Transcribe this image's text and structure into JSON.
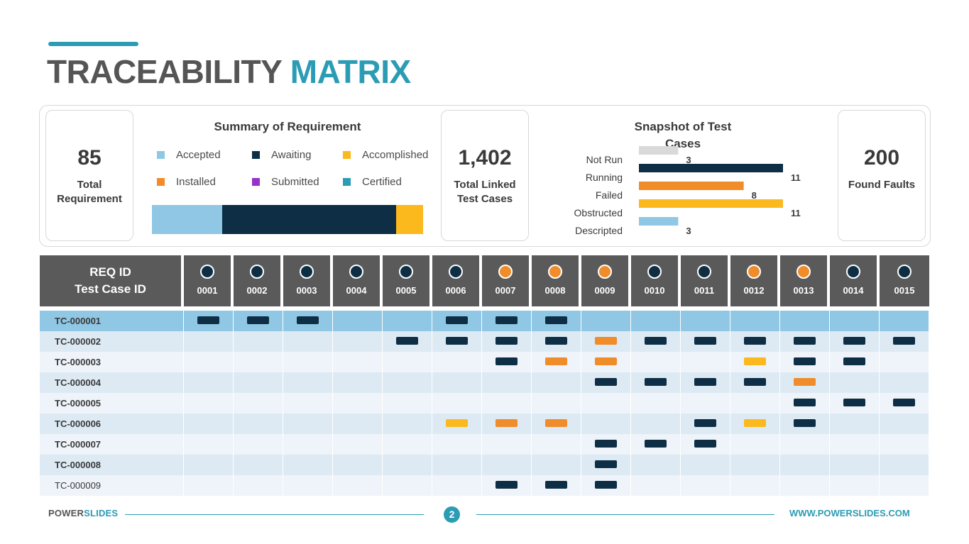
{
  "header": {
    "title_part1": "TRACEABILITY",
    "title_part2": "MATRIX"
  },
  "colors": {
    "accent": "#2b9cb4",
    "dark_navy": "#0d2e44",
    "orange": "#f08c2a",
    "yellow": "#fbb91d",
    "light_blue": "#8fc7e4",
    "gray": "#d9d9d9",
    "purple": "#9b30c8",
    "teal": "#2b9cb4"
  },
  "stats": [
    {
      "value": "85",
      "label": "Total Requirement"
    },
    {
      "value": "1,402",
      "label": "Total Linked Test Cases"
    },
    {
      "value": "200",
      "label": "Found Faults"
    }
  ],
  "summary": {
    "title": "Summary of Requirement",
    "legend": [
      {
        "label": "Accepted",
        "color": "#8fc7e4"
      },
      {
        "label": "Awaiting",
        "color": "#0d2e44"
      },
      {
        "label": "Accomplished",
        "color": "#fbb91d"
      },
      {
        "label": "Installed",
        "color": "#f08c2a"
      },
      {
        "label": "Submitted",
        "color": "#9b30c8"
      },
      {
        "label": "Certified",
        "color": "#2b9cb4"
      }
    ]
  },
  "chart_data": [
    {
      "type": "bar",
      "title": "Summary of Requirement",
      "orientation": "horizontal-stacked",
      "series": [
        {
          "name": "Accepted",
          "values": [
            26
          ]
        },
        {
          "name": "Awaiting",
          "values": [
            64
          ]
        },
        {
          "name": "Accomplished",
          "values": [
            10
          ]
        },
        {
          "name": "Installed",
          "values": [
            0
          ]
        },
        {
          "name": "Submitted",
          "values": [
            0
          ]
        },
        {
          "name": "Certified",
          "values": [
            0
          ]
        }
      ],
      "legend": "top"
    },
    {
      "type": "bar",
      "title": "Snapshot of Test Cases",
      "orientation": "horizontal",
      "categories": [
        "Not Run",
        "Running",
        "Failed",
        "Obstructed",
        "Descripted"
      ],
      "values": [
        3,
        11,
        8,
        11,
        3
      ],
      "colors": [
        "#d9d9d9",
        "#0d2e44",
        "#f08c2a",
        "#fbb91d",
        "#8fc7e4"
      ],
      "xlim": [
        0,
        11
      ],
      "grid": false,
      "data_labels": true
    }
  ],
  "matrix": {
    "row_header_line1": "REQ ID",
    "row_header_line2": "Test Case ID",
    "columns": [
      {
        "id": "0001",
        "status": "navy"
      },
      {
        "id": "0002",
        "status": "navy"
      },
      {
        "id": "0003",
        "status": "navy"
      },
      {
        "id": "0004",
        "status": "navy"
      },
      {
        "id": "0005",
        "status": "navy"
      },
      {
        "id": "0006",
        "status": "navy"
      },
      {
        "id": "0007",
        "status": "orange"
      },
      {
        "id": "0008",
        "status": "orange"
      },
      {
        "id": "0009",
        "status": "orange"
      },
      {
        "id": "0010",
        "status": "navy"
      },
      {
        "id": "0011",
        "status": "navy"
      },
      {
        "id": "0012",
        "status": "orange"
      },
      {
        "id": "0013",
        "status": "orange"
      },
      {
        "id": "0014",
        "status": "navy"
      },
      {
        "id": "0015",
        "status": "navy"
      }
    ],
    "rows": [
      {
        "id": "TC-000001",
        "cells": [
          "n",
          "n",
          "n",
          "",
          "",
          "n",
          "n",
          "n",
          "",
          "",
          "",
          "",
          "",
          "",
          ""
        ]
      },
      {
        "id": "TC-000002",
        "cells": [
          "",
          "",
          "",
          "",
          "n",
          "n",
          "n",
          "n",
          "o",
          "n",
          "n",
          "n",
          "n",
          "n",
          "n"
        ]
      },
      {
        "id": "TC-000003",
        "cells": [
          "",
          "",
          "",
          "",
          "",
          "",
          "n",
          "o",
          "o",
          "",
          "",
          "y",
          "n",
          "n",
          ""
        ]
      },
      {
        "id": "TC-000004",
        "cells": [
          "",
          "",
          "",
          "",
          "",
          "",
          "",
          "",
          "n",
          "n",
          "n",
          "n",
          "o",
          "",
          ""
        ]
      },
      {
        "id": "TC-000005",
        "cells": [
          "",
          "",
          "",
          "",
          "",
          "",
          "",
          "",
          "",
          "",
          "",
          "",
          "n",
          "n",
          "n"
        ]
      },
      {
        "id": "TC-000006",
        "cells": [
          "",
          "",
          "",
          "",
          "",
          "y",
          "o",
          "o",
          "",
          "",
          "n",
          "y",
          "n",
          "",
          ""
        ]
      },
      {
        "id": "TC-000007",
        "cells": [
          "",
          "",
          "",
          "",
          "",
          "",
          "",
          "",
          "n",
          "n",
          "n",
          "",
          "",
          "",
          ""
        ]
      },
      {
        "id": "TC-000008",
        "cells": [
          "",
          "",
          "",
          "",
          "",
          "",
          "",
          "",
          "n",
          "",
          "",
          "",
          "",
          "",
          ""
        ]
      },
      {
        "id": "TC-000009",
        "cells": [
          "",
          "",
          "",
          "",
          "",
          "",
          "n",
          "n",
          "n",
          "",
          "",
          "",
          "",
          "",
          ""
        ]
      }
    ]
  },
  "footer": {
    "brand_part1": "POWER",
    "brand_part2": "SLIDES",
    "page_number": "2",
    "url": "WWW.POWERSLIDES.COM"
  }
}
